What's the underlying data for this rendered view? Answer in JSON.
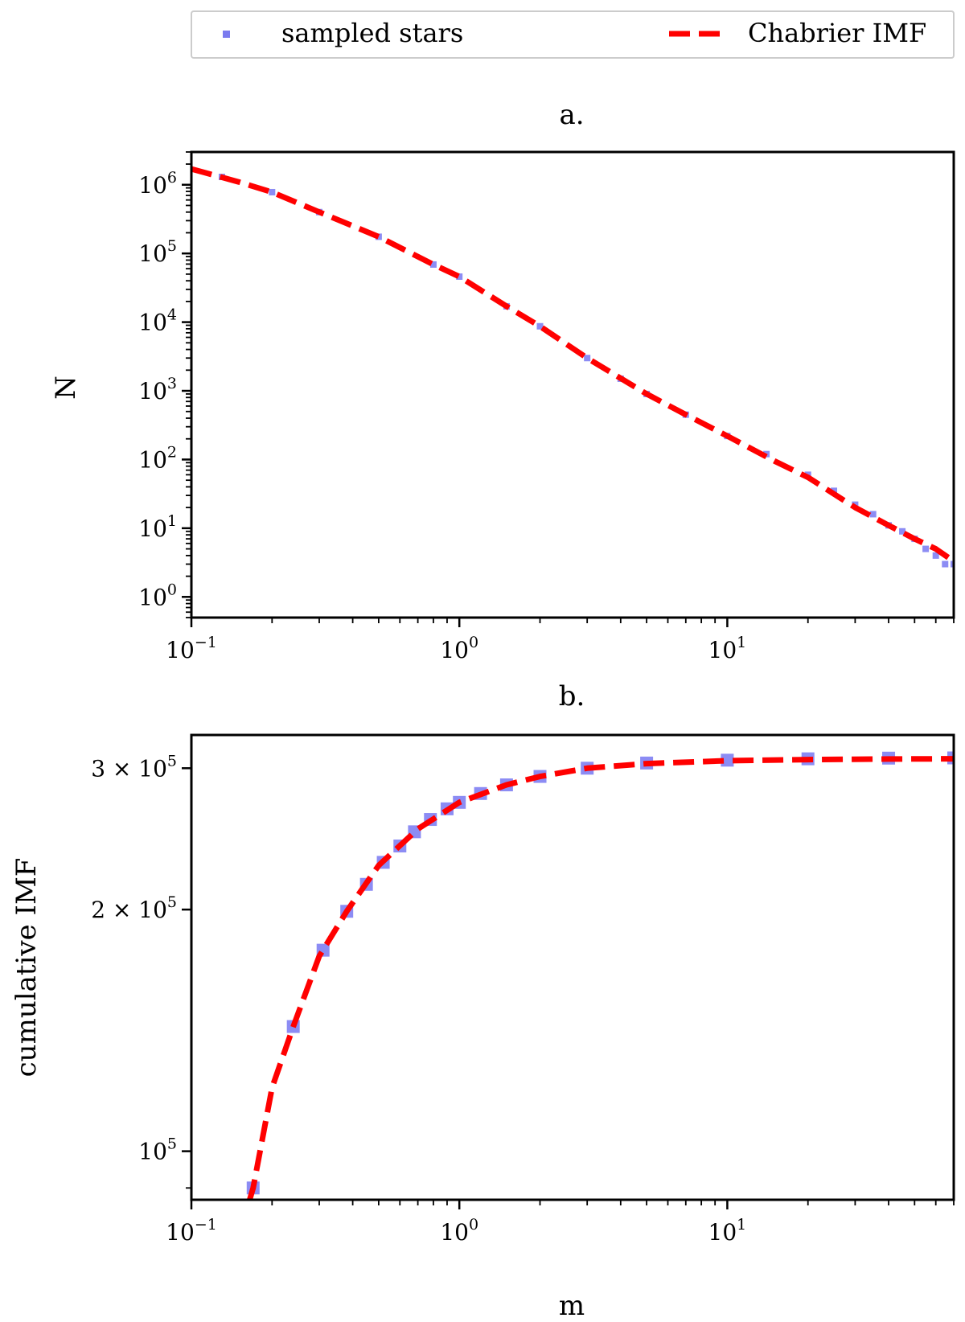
{
  "colors": {
    "sampled": "#0000e6",
    "imf": "#ff0000",
    "frame": "#000000"
  },
  "legend": {
    "entries": [
      {
        "label": "sampled stars",
        "marker": "square",
        "color": "#7b7bef"
      },
      {
        "label": "Chabrier IMF",
        "marker": "dashed-line",
        "color": "#ff0000"
      }
    ],
    "placement": "top"
  },
  "chart_data": [
    {
      "type": "scatter",
      "panel": "a.",
      "title": "a.",
      "xlabel": "",
      "ylabel": "N",
      "xscale": "log",
      "yscale": "log",
      "xlim": [
        0.1,
        70
      ],
      "ylim": [
        0.5,
        3000000
      ],
      "x_ticks": [
        0.1,
        1,
        10
      ],
      "x_tick_labels": [
        {
          "base": "10",
          "exp": "−1"
        },
        {
          "base": "10",
          "exp": "0"
        },
        {
          "base": "10",
          "exp": "1"
        }
      ],
      "y_ticks": [
        1,
        10,
        100,
        1000,
        10000,
        100000,
        1000000
      ],
      "y_tick_labels": [
        {
          "base": "10",
          "exp": "0"
        },
        {
          "base": "10",
          "exp": "1"
        },
        {
          "base": "10",
          "exp": "2"
        },
        {
          "base": "10",
          "exp": "3"
        },
        {
          "base": "10",
          "exp": "4"
        },
        {
          "base": "10",
          "exp": "5"
        },
        {
          "base": "10",
          "exp": "6"
        }
      ],
      "series": [
        {
          "name": "sampled stars",
          "style": "markers",
          "x": [
            0.13,
            0.2,
            0.3,
            0.5,
            0.8,
            1.0,
            1.5,
            2,
            3,
            4,
            5,
            7,
            10,
            14,
            20,
            25,
            30,
            35,
            40,
            45,
            50,
            55,
            60,
            65,
            70
          ],
          "y": [
            1300000,
            780000,
            400000,
            175000,
            69000,
            46000,
            17000,
            8700,
            3000,
            1500,
            900,
            450,
            220,
            120,
            60,
            35,
            22,
            16,
            11,
            9,
            7,
            5,
            4,
            3,
            3
          ]
        },
        {
          "name": "Chabrier IMF",
          "style": "dashed-line",
          "x": [
            0.1,
            0.15,
            0.2,
            0.3,
            0.5,
            0.8,
            1.0,
            1.5,
            2,
            3,
            5,
            7,
            10,
            15,
            20,
            30,
            40,
            50,
            60,
            70
          ],
          "y": [
            1700000,
            1100000,
            780000,
            400000,
            175000,
            69000,
            46000,
            17000,
            8700,
            3000,
            900,
            450,
            220,
            95,
            55,
            20,
            11,
            7,
            5,
            3.3
          ]
        }
      ]
    },
    {
      "type": "scatter",
      "panel": "b.",
      "title": "b.",
      "xlabel": "m",
      "ylabel": "cumulative IMF",
      "xscale": "log",
      "yscale": "log",
      "xlim": [
        0.1,
        70
      ],
      "ylim": [
        87000,
        330000
      ],
      "x_ticks": [
        0.1,
        1,
        10
      ],
      "x_tick_labels": [
        {
          "base": "10",
          "exp": "−1"
        },
        {
          "base": "10",
          "exp": "0"
        },
        {
          "base": "10",
          "exp": "1"
        }
      ],
      "y_ticks": [
        100000,
        200000,
        300000
      ],
      "y_tick_labels": [
        {
          "base": "10",
          "exp": "5"
        },
        {
          "base": "2 × 10",
          "exp": "5"
        },
        {
          "base": "3 × 10",
          "exp": "5"
        }
      ],
      "series": [
        {
          "name": "sampled stars",
          "style": "markers",
          "x": [
            0.17,
            0.24,
            0.31,
            0.38,
            0.45,
            0.52,
            0.6,
            0.68,
            0.78,
            0.9,
            1.0,
            1.2,
            1.5,
            2,
            3,
            5,
            10,
            20,
            40,
            70
          ],
          "y": [
            90000,
            143000,
            178000,
            199000,
            215000,
            229000,
            240000,
            250000,
            259000,
            267000,
            272000,
            279000,
            286000,
            293000,
            300000,
            304500,
            307000,
            308200,
            308800,
            309000
          ]
        },
        {
          "name": "Chabrier IMF",
          "style": "dashed-line",
          "x": [
            0.165,
            0.17,
            0.2,
            0.24,
            0.3,
            0.38,
            0.5,
            0.7,
            1.0,
            1.5,
            2,
            3,
            5,
            10,
            20,
            40,
            70
          ],
          "y": [
            87000,
            90000,
            120000,
            143000,
            175000,
            199000,
            227000,
            252000,
            272000,
            286000,
            293000,
            300000,
            304000,
            306500,
            307500,
            308000,
            308200
          ]
        }
      ]
    }
  ]
}
